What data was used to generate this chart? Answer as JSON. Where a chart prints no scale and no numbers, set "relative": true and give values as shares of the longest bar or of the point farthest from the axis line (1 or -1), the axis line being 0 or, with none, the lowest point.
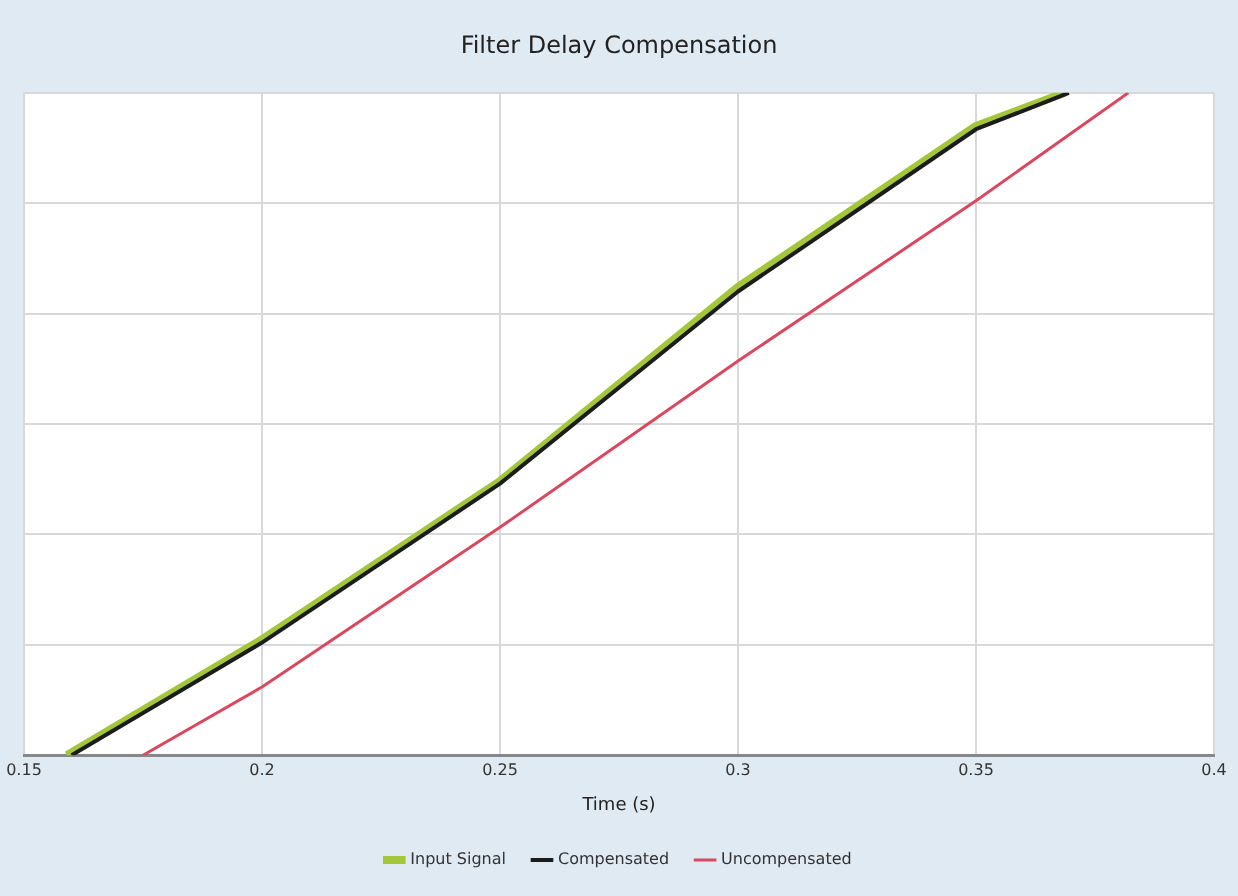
{
  "chart_data": {
    "type": "line",
    "title": "Filter Delay Compensation",
    "xlabel": "Time (s)",
    "relative": true,
    "xlim": [
      0.15,
      0.4
    ],
    "xticks": [
      0.15,
      0.2,
      0.25,
      0.3,
      0.35,
      0.4
    ],
    "grid": true,
    "legend": "bottom",
    "marker": "none",
    "line_style": "solid",
    "series": [
      {
        "name": "Input Signal",
        "color": "#a4c639",
        "x": [
          0.159,
          0.2,
          0.25,
          0.3,
          0.35,
          0.3686
        ],
        "values": [
          0,
          0.175,
          0.414,
          0.707,
          0.95,
          1
        ]
      },
      {
        "name": "Compensated",
        "color": "#1c1c1c",
        "x": [
          0.16,
          0.2,
          0.25,
          0.3,
          0.35,
          0.3695
        ],
        "values": [
          0,
          0.17,
          0.41,
          0.7,
          0.945,
          1
        ]
      },
      {
        "name": "Uncompensated",
        "color": "#d9485f",
        "x": [
          0.175,
          0.2,
          0.25,
          0.3,
          0.35,
          0.382
        ],
        "values": [
          0,
          0.103,
          0.344,
          0.595,
          0.837,
          1
        ]
      }
    ]
  }
}
